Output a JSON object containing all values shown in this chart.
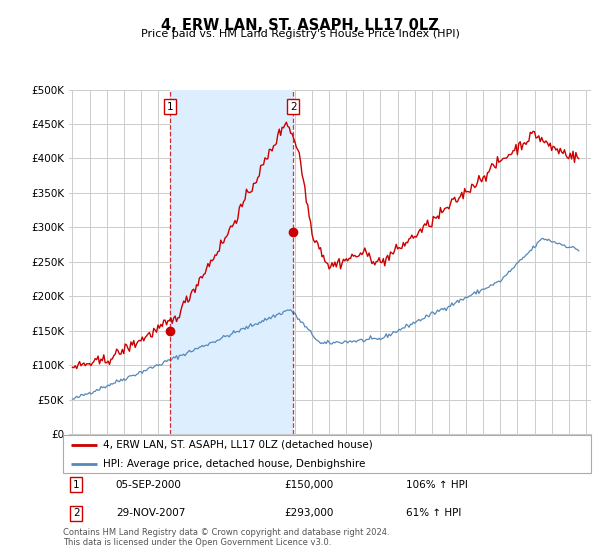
{
  "title": "4, ERW LAN, ST. ASAPH, LL17 0LZ",
  "subtitle": "Price paid vs. HM Land Registry's House Price Index (HPI)",
  "ylim": [
    0,
    500000
  ],
  "yticks": [
    0,
    50000,
    100000,
    150000,
    200000,
    250000,
    300000,
    350000,
    400000,
    450000,
    500000
  ],
  "xlim_start": 1994.8,
  "xlim_end": 2025.3,
  "sale1_year": 2000.68,
  "sale1_price": 150000,
  "sale1_label": "1",
  "sale1_date": "05-SEP-2000",
  "sale1_hpi": "106% ↑ HPI",
  "sale2_year": 2007.91,
  "sale2_price": 293000,
  "sale2_label": "2",
  "sale2_date": "29-NOV-2007",
  "sale2_hpi": "61% ↑ HPI",
  "red_color": "#cc0000",
  "blue_color": "#5588bb",
  "shade_color": "#ddeeff",
  "legend_label_red": "4, ERW LAN, ST. ASAPH, LL17 0LZ (detached house)",
  "legend_label_blue": "HPI: Average price, detached house, Denbighshire",
  "footnote": "Contains HM Land Registry data © Crown copyright and database right 2024.\nThis data is licensed under the Open Government Licence v3.0."
}
